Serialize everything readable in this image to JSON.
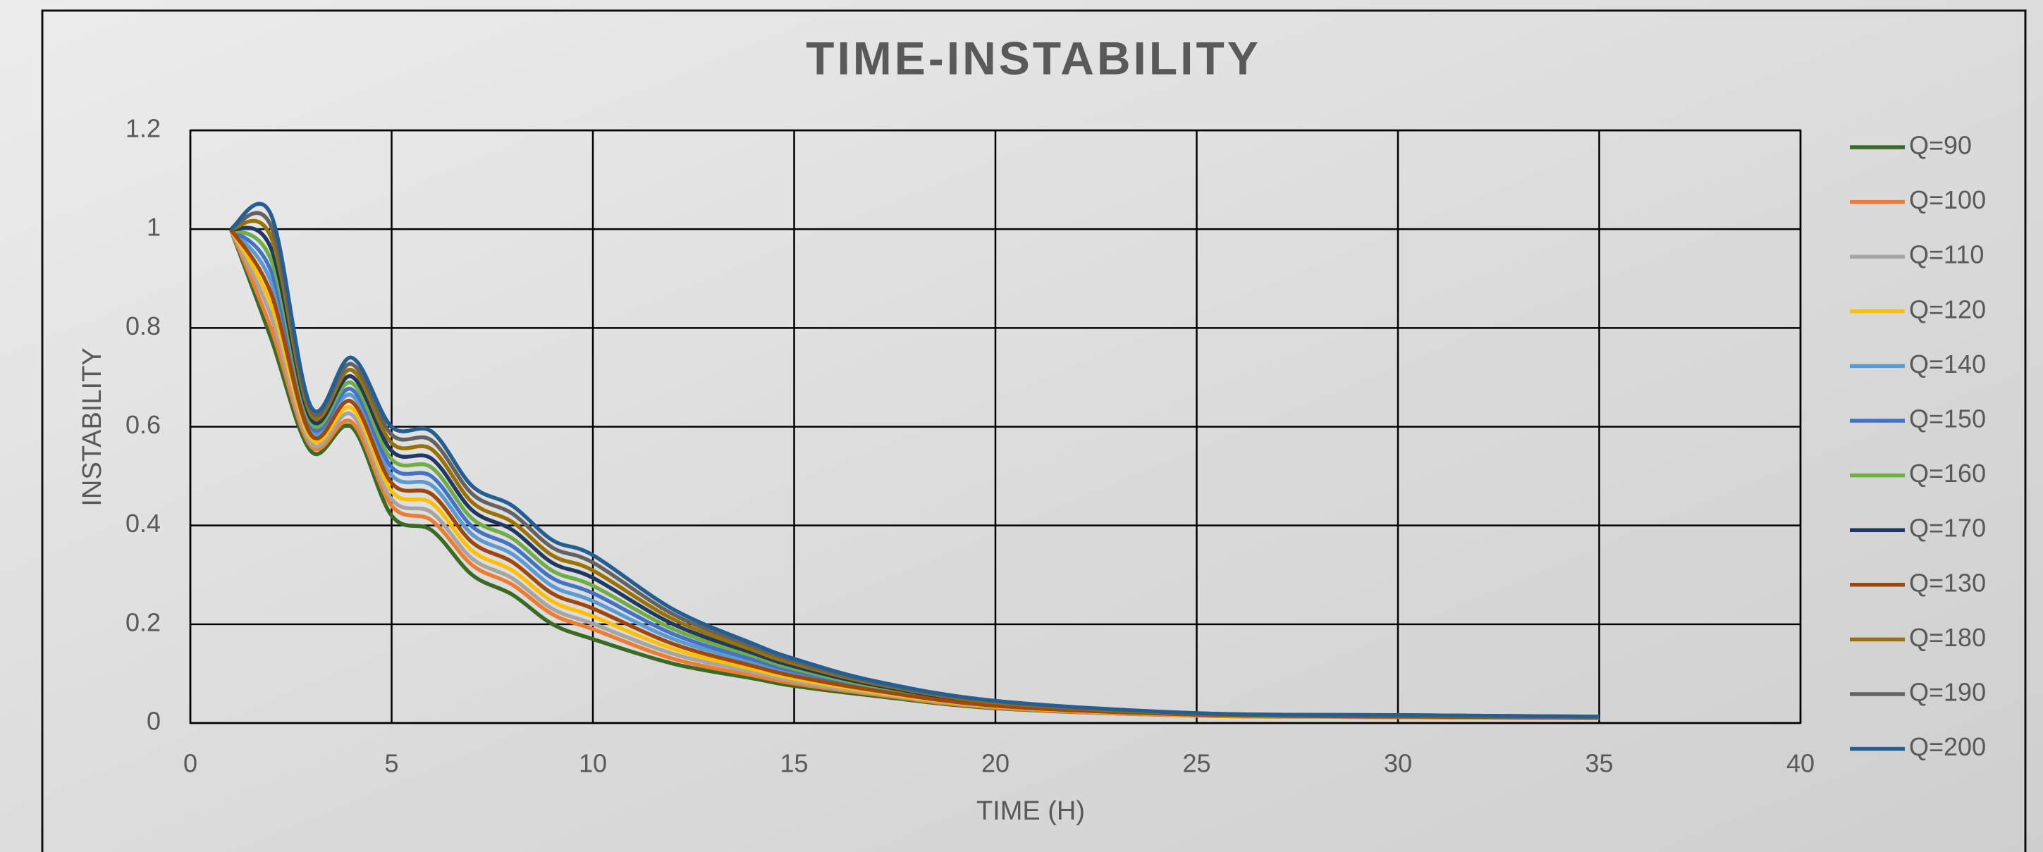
{
  "chart_data": {
    "type": "line",
    "title": "TIME-INSTABILITY",
    "x_label": "TIME (H)",
    "y_label": "INSTABILITY",
    "x": [
      1,
      2,
      3,
      4,
      5,
      6,
      7,
      8,
      9,
      10,
      12,
      14,
      15,
      17,
      20,
      25,
      30,
      35
    ],
    "xlim": [
      0,
      40
    ],
    "xticks": [
      0,
      5,
      10,
      15,
      20,
      25,
      30,
      35,
      40
    ],
    "ylim": [
      0,
      1.2
    ],
    "yticks": [
      0,
      0.2,
      0.4,
      0.6,
      0.8,
      1,
      1.2
    ],
    "grid": true,
    "smooth": true,
    "legend": "right",
    "series": [
      {
        "name": "Q=90",
        "color": "#3a6b22",
        "values": [
          1,
          0.78,
          0.55,
          0.6,
          0.42,
          0.39,
          0.3,
          0.26,
          0.2,
          0.17,
          0.12,
          0.09,
          0.075,
          0.055,
          0.03,
          0.015,
          0.012,
          0.01
        ]
      },
      {
        "name": "Q=100",
        "color": "#ed7d31",
        "values": [
          1,
          0.8,
          0.56,
          0.61,
          0.44,
          0.41,
          0.32,
          0.28,
          0.22,
          0.19,
          0.13,
          0.096,
          0.08,
          0.058,
          0.031,
          0.015,
          0.012,
          0.01
        ]
      },
      {
        "name": "Q=110",
        "color": "#a5a5a5",
        "values": [
          1,
          0.825,
          0.566,
          0.625,
          0.453,
          0.426,
          0.333,
          0.293,
          0.231,
          0.201,
          0.14,
          0.103,
          0.085,
          0.06,
          0.033,
          0.016,
          0.013,
          0.011
        ]
      },
      {
        "name": "Q=120",
        "color": "#ffc000",
        "values": [
          1,
          0.848,
          0.575,
          0.638,
          0.469,
          0.445,
          0.349,
          0.309,
          0.246,
          0.216,
          0.15,
          0.109,
          0.09,
          0.063,
          0.034,
          0.016,
          0.013,
          0.011
        ]
      },
      {
        "name": "Q=140",
        "color": "#5b9bd5",
        "values": [
          1,
          0.894,
          0.591,
          0.664,
          0.502,
          0.481,
          0.382,
          0.342,
          0.277,
          0.247,
          0.17,
          0.122,
          0.1,
          0.069,
          0.037,
          0.017,
          0.014,
          0.011
        ]
      },
      {
        "name": "Q=150",
        "color": "#4472c4",
        "values": [
          1,
          0.916,
          0.599,
          0.676,
          0.518,
          0.499,
          0.398,
          0.358,
          0.293,
          0.263,
          0.18,
          0.128,
          0.105,
          0.071,
          0.038,
          0.018,
          0.014,
          0.012
        ]
      },
      {
        "name": "Q=160",
        "color": "#70ad47",
        "values": [
          1,
          0.939,
          0.607,
          0.689,
          0.534,
          0.517,
          0.414,
          0.374,
          0.308,
          0.278,
          0.19,
          0.135,
          0.11,
          0.074,
          0.04,
          0.018,
          0.015,
          0.012
        ]
      },
      {
        "name": "Q=170",
        "color": "#1f3864",
        "values": [
          1,
          0.962,
          0.615,
          0.702,
          0.551,
          0.535,
          0.431,
          0.391,
          0.324,
          0.294,
          0.2,
          0.141,
          0.115,
          0.077,
          0.041,
          0.019,
          0.015,
          0.012
        ]
      },
      {
        "name": "Q=130",
        "color": "#9e480e",
        "values": [
          1,
          0.871,
          0.583,
          0.651,
          0.486,
          0.463,
          0.366,
          0.326,
          0.262,
          0.232,
          0.16,
          0.115,
          0.095,
          0.066,
          0.035,
          0.017,
          0.013,
          0.011
        ]
      },
      {
        "name": "Q=180",
        "color": "#997300",
        "values": [
          1,
          0.985,
          0.624,
          0.715,
          0.567,
          0.554,
          0.447,
          0.407,
          0.339,
          0.309,
          0.21,
          0.147,
          0.12,
          0.08,
          0.042,
          0.019,
          0.015,
          0.012
        ]
      },
      {
        "name": "Q=190",
        "color": "#636363",
        "values": [
          1,
          1.007,
          0.632,
          0.727,
          0.584,
          0.572,
          0.464,
          0.424,
          0.355,
          0.325,
          0.22,
          0.154,
          0.125,
          0.082,
          0.044,
          0.02,
          0.016,
          0.013
        ]
      },
      {
        "name": "Q=200",
        "color": "#255e91",
        "values": [
          1,
          1.03,
          0.64,
          0.74,
          0.6,
          0.59,
          0.48,
          0.44,
          0.37,
          0.34,
          0.23,
          0.16,
          0.13,
          0.085,
          0.045,
          0.02,
          0.016,
          0.013
        ]
      }
    ]
  }
}
